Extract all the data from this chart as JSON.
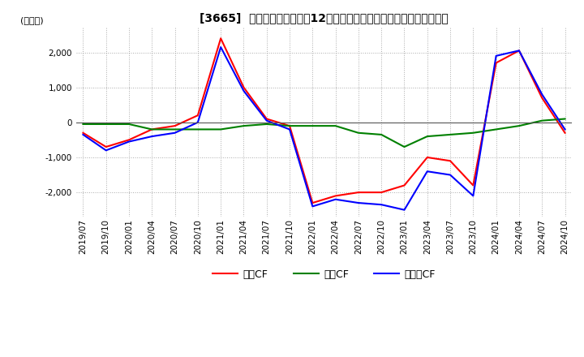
{
  "title": "[3665]  キャッシュフローの12か月移動合計の対前年同期増減額の推移",
  "ylabel": "(百万円)",
  "line_colors": {
    "営業CF": "#ff0000",
    "投資CF": "#008000",
    "フリーCF": "#0000ff"
  },
  "ylim": [
    -2700,
    2700
  ],
  "background_color": "#ffffff",
  "grid_color": "#aaaaaa",
  "x_labels": [
    "2019/07",
    "2019/10",
    "2020/01",
    "2020/04",
    "2020/07",
    "2020/10",
    "2021/01",
    "2021/04",
    "2021/07",
    "2021/10",
    "2022/01",
    "2022/04",
    "2022/07",
    "2022/10",
    "2023/01",
    "2023/04",
    "2023/07",
    "2023/10",
    "2024/01",
    "2024/04",
    "2024/07",
    "2024/10"
  ],
  "series": {
    "営業CF": [
      -300,
      -700,
      -500,
      -200,
      -100,
      200,
      2400,
      1000,
      100,
      -100,
      -2300,
      -2100,
      -2000,
      -2000,
      -1800,
      -1000,
      -1100,
      -1800,
      1700,
      2050,
      700,
      -300
    ],
    "投資CF": [
      -50,
      -50,
      -50,
      -200,
      -200,
      -200,
      -200,
      -100,
      -50,
      -100,
      -100,
      -100,
      -300,
      -350,
      -700,
      -400,
      -350,
      -300,
      -200,
      -100,
      50,
      100
    ],
    "フリーCF": [
      -350,
      -800,
      -550,
      -400,
      -300,
      0,
      2150,
      900,
      50,
      -200,
      -2400,
      -2200,
      -2300,
      -2350,
      -2500,
      -1400,
      -1500,
      -2100,
      1900,
      2050,
      800,
      -200
    ]
  },
  "yticks": [
    -2000,
    -1000,
    0,
    1000,
    2000
  ],
  "title_fontsize": 10,
  "legend_fontsize": 9,
  "tick_fontsize": 7.5
}
